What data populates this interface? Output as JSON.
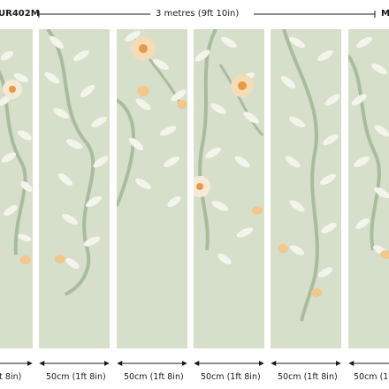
{
  "header": {
    "code_left": "UR402M",
    "width_total": "3 metres (9ft 10in)",
    "code_right": "M"
  },
  "panels": [
    {
      "width_label": "ft 8in)"
    },
    {
      "width_label": "50cm (1ft 8in)"
    },
    {
      "width_label": "50cm (1ft 8in)"
    },
    {
      "width_label": "50cm (1ft 8in)"
    },
    {
      "width_label": "50cm (1ft 8in)"
    },
    {
      "width_label": "50cm (1"
    }
  ],
  "colors": {
    "background": "#d6dfca",
    "leaf": "#f3f4ec",
    "vine": "#a9bc9d",
    "flower": "#f2c78c",
    "flower_center": "#e79a43",
    "dimension_line": "#1a1a1a"
  }
}
